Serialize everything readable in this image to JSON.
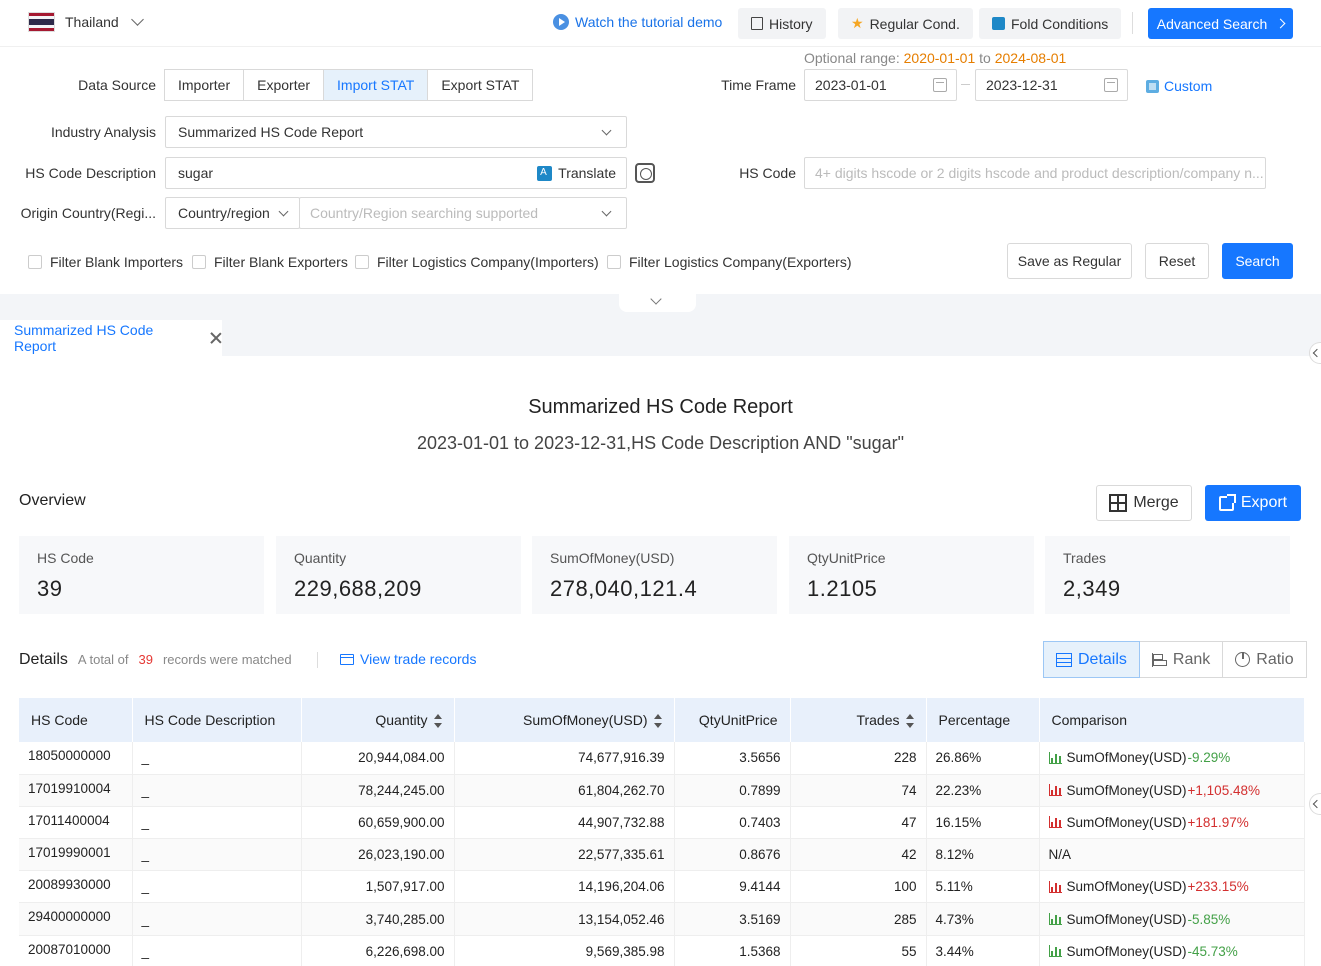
{
  "topbar": {
    "country": "Thailand",
    "tutorial": "Watch the tutorial demo",
    "history": "History",
    "regular_cond": "Regular Cond.",
    "fold_conditions": "Fold Conditions",
    "advanced_search": "Advanced Search"
  },
  "filters": {
    "data_source_label": "Data Source",
    "data_source_options": [
      "Importer",
      "Exporter",
      "Import STAT",
      "Export STAT"
    ],
    "data_source_selected": "Import STAT",
    "optional_range_label": "Optional range:",
    "optional_range_from": "2020-01-01",
    "optional_range_to_word": "to",
    "optional_range_to": "2024-08-01",
    "time_frame_label": "Time Frame",
    "time_from": "2023-01-01",
    "time_to": "2023-12-31",
    "custom": "Custom",
    "industry_label": "Industry Analysis",
    "industry_value": "Summarized HS Code Report",
    "hs_desc_label": "HS Code Description",
    "hs_desc_value": "sugar",
    "translate": "Translate",
    "hs_code_label": "HS Code",
    "hs_code_placeholder": "4+ digits hscode or 2 digits hscode and product description/company n...",
    "origin_label": "Origin Country(Regi...",
    "origin_type": "Country/region",
    "origin_placeholder": "Country/Region searching supported",
    "checkboxes": [
      "Filter Blank Importers",
      "Filter Blank Exporters",
      "Filter Logistics Company(Importers)",
      "Filter Logistics Company(Exporters)"
    ],
    "save_regular": "Save as Regular",
    "reset": "Reset",
    "search": "Search"
  },
  "tab": {
    "label": "Summarized HS Code Report"
  },
  "report": {
    "title": "Summarized HS Code Report",
    "subtitle": "2023-01-01 to 2023-12-31,HS Code Description AND \"sugar\"",
    "overview": "Overview",
    "merge": "Merge",
    "export": "Export",
    "stats": [
      {
        "label": "HS Code",
        "value": "39"
      },
      {
        "label": "Quantity",
        "value": "229,688,209"
      },
      {
        "label": "SumOfMoney(USD)",
        "value": "278,040,121.4"
      },
      {
        "label": "QtyUnitPrice",
        "value": "1.2105"
      },
      {
        "label": "Trades",
        "value": "2,349"
      }
    ],
    "details": "Details",
    "total_prefix": "A total of",
    "total_count": "39",
    "total_suffix": "records were matched",
    "view_trade_records": "View trade records",
    "view_tabs": [
      "Details",
      "Rank",
      "Ratio"
    ]
  },
  "table": {
    "headers": [
      "HS Code",
      "HS Code Description",
      "Quantity",
      "SumOfMoney(USD)",
      "QtyUnitPrice",
      "Trades",
      "Percentage",
      "Comparison"
    ],
    "rows": [
      {
        "code": "18050000000",
        "desc": "_",
        "qty": "20,944,084.00",
        "money": "74,677,916.39",
        "unit": "3.5656",
        "trades": "228",
        "pct": "26.86%",
        "cmp_label": "SumOfMoney(USD)",
        "cmp_change": "-9.29%",
        "cmp_dir": "down"
      },
      {
        "code": "17019910004",
        "desc": "_",
        "qty": "78,244,245.00",
        "money": "61,804,262.70",
        "unit": "0.7899",
        "trades": "74",
        "pct": "22.23%",
        "cmp_label": "SumOfMoney(USD)",
        "cmp_change": "+1,105.48%",
        "cmp_dir": "up"
      },
      {
        "code": "17011400004",
        "desc": "_",
        "qty": "60,659,900.00",
        "money": "44,907,732.88",
        "unit": "0.7403",
        "trades": "47",
        "pct": "16.15%",
        "cmp_label": "SumOfMoney(USD)",
        "cmp_change": "+181.97%",
        "cmp_dir": "up"
      },
      {
        "code": "17019990001",
        "desc": "_",
        "qty": "26,023,190.00",
        "money": "22,577,335.61",
        "unit": "0.8676",
        "trades": "42",
        "pct": "8.12%",
        "cmp_label": "N/A",
        "cmp_change": "",
        "cmp_dir": "none"
      },
      {
        "code": "20089930000",
        "desc": "_",
        "qty": "1,507,917.00",
        "money": "14,196,204.06",
        "unit": "9.4144",
        "trades": "100",
        "pct": "5.11%",
        "cmp_label": "SumOfMoney(USD)",
        "cmp_change": "+233.15%",
        "cmp_dir": "up"
      },
      {
        "code": "29400000000",
        "desc": "_",
        "qty": "3,740,285.00",
        "money": "13,154,052.46",
        "unit": "3.5169",
        "trades": "285",
        "pct": "4.73%",
        "cmp_label": "SumOfMoney(USD)",
        "cmp_change": "-5.85%",
        "cmp_dir": "down"
      },
      {
        "code": "20087010000",
        "desc": "_",
        "qty": "6,226,698.00",
        "money": "9,569,385.98",
        "unit": "1.5368",
        "trades": "55",
        "pct": "3.44%",
        "cmp_label": "SumOfMoney(USD)",
        "cmp_change": "-45.73%",
        "cmp_dir": "down"
      }
    ]
  }
}
